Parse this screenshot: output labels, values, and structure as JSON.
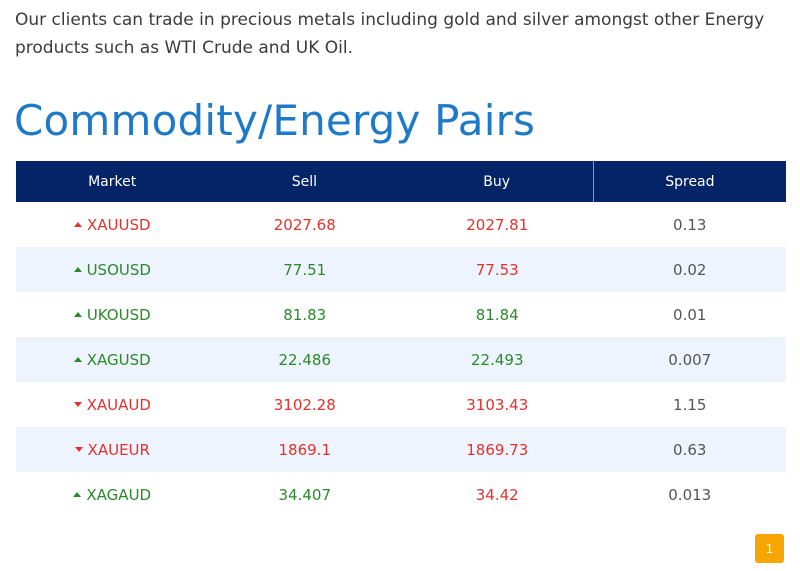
{
  "intro_text": "Our clients can trade in precious metals including gold and silver amongst other Energy products such as WTI Crude and UK Oil.",
  "heading": "Commodity/Energy Pairs",
  "table": {
    "headers": {
      "market": "Market",
      "sell": "Sell",
      "buy": "Buy",
      "spread": "Spread"
    },
    "rows": [
      {
        "market": "XAUUSD",
        "direction": "up",
        "market_color": "down",
        "sell": "2027.68",
        "sell_color": "down",
        "buy": "2027.81",
        "buy_color": "down",
        "spread": "0.13"
      },
      {
        "market": "USOUSD",
        "direction": "up",
        "market_color": "up",
        "sell": "77.51",
        "sell_color": "up",
        "buy": "77.53",
        "buy_color": "down",
        "spread": "0.02"
      },
      {
        "market": "UKOUSD",
        "direction": "up",
        "market_color": "up",
        "sell": "81.83",
        "sell_color": "up",
        "buy": "81.84",
        "buy_color": "up",
        "spread": "0.01"
      },
      {
        "market": "XAGUSD",
        "direction": "up",
        "market_color": "up",
        "sell": "22.486",
        "sell_color": "up",
        "buy": "22.493",
        "buy_color": "up",
        "spread": "0.007"
      },
      {
        "market": "XAUAUD",
        "direction": "down",
        "market_color": "down",
        "sell": "3102.28",
        "sell_color": "down",
        "buy": "3103.43",
        "buy_color": "down",
        "spread": "1.15"
      },
      {
        "market": "XAUEUR",
        "direction": "down",
        "market_color": "down",
        "sell": "1869.1",
        "sell_color": "down",
        "buy": "1869.73",
        "buy_color": "down",
        "spread": "0.63"
      },
      {
        "market": "XAGAUD",
        "direction": "up",
        "market_color": "up",
        "sell": "34.407",
        "sell_color": "up",
        "buy": "34.42",
        "buy_color": "down",
        "spread": "0.013"
      }
    ]
  },
  "pagination": {
    "current_page": "1"
  },
  "colors": {
    "header_bg": "#052467",
    "heading": "#1e79c8",
    "up": "#2a8a2a",
    "down": "#e5312c",
    "pager": "#f7a500"
  }
}
